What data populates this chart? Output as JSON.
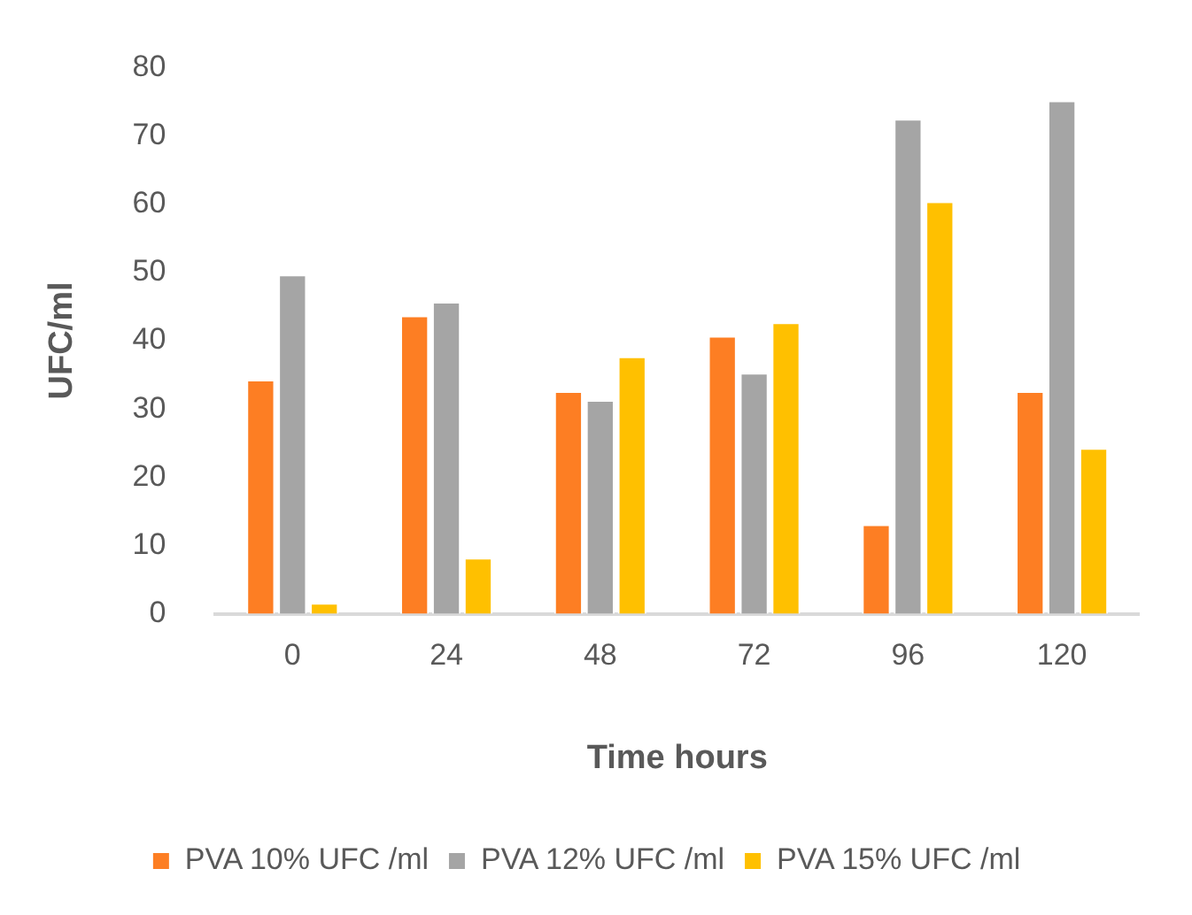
{
  "chart_data": {
    "type": "bar",
    "xlabel": "Time hours",
    "ylabel": "UFC/ml",
    "categories": [
      "0",
      "24",
      "48",
      "72",
      "96",
      "120"
    ],
    "series": [
      {
        "name": "PVA 10% UFC /ml",
        "color": "#fd7e23",
        "values": [
          34.3,
          43.7,
          32.6,
          40.7,
          13.1,
          32.6
        ]
      },
      {
        "name": "PVA 12% UFC /ml",
        "color": "#a5a5a5",
        "values": [
          49.7,
          45.7,
          31.3,
          35.3,
          72.5,
          75.2
        ]
      },
      {
        "name": "PVA 15% UFC /ml",
        "color": "#ffc000",
        "values": [
          1.6,
          8.2,
          37.7,
          42.7,
          60.4,
          24.3
        ]
      }
    ],
    "ylim": [
      0,
      80
    ],
    "yticks": [
      0,
      10,
      20,
      30,
      40,
      50,
      60,
      70,
      80
    ],
    "grid": false,
    "legend": "bottom"
  }
}
